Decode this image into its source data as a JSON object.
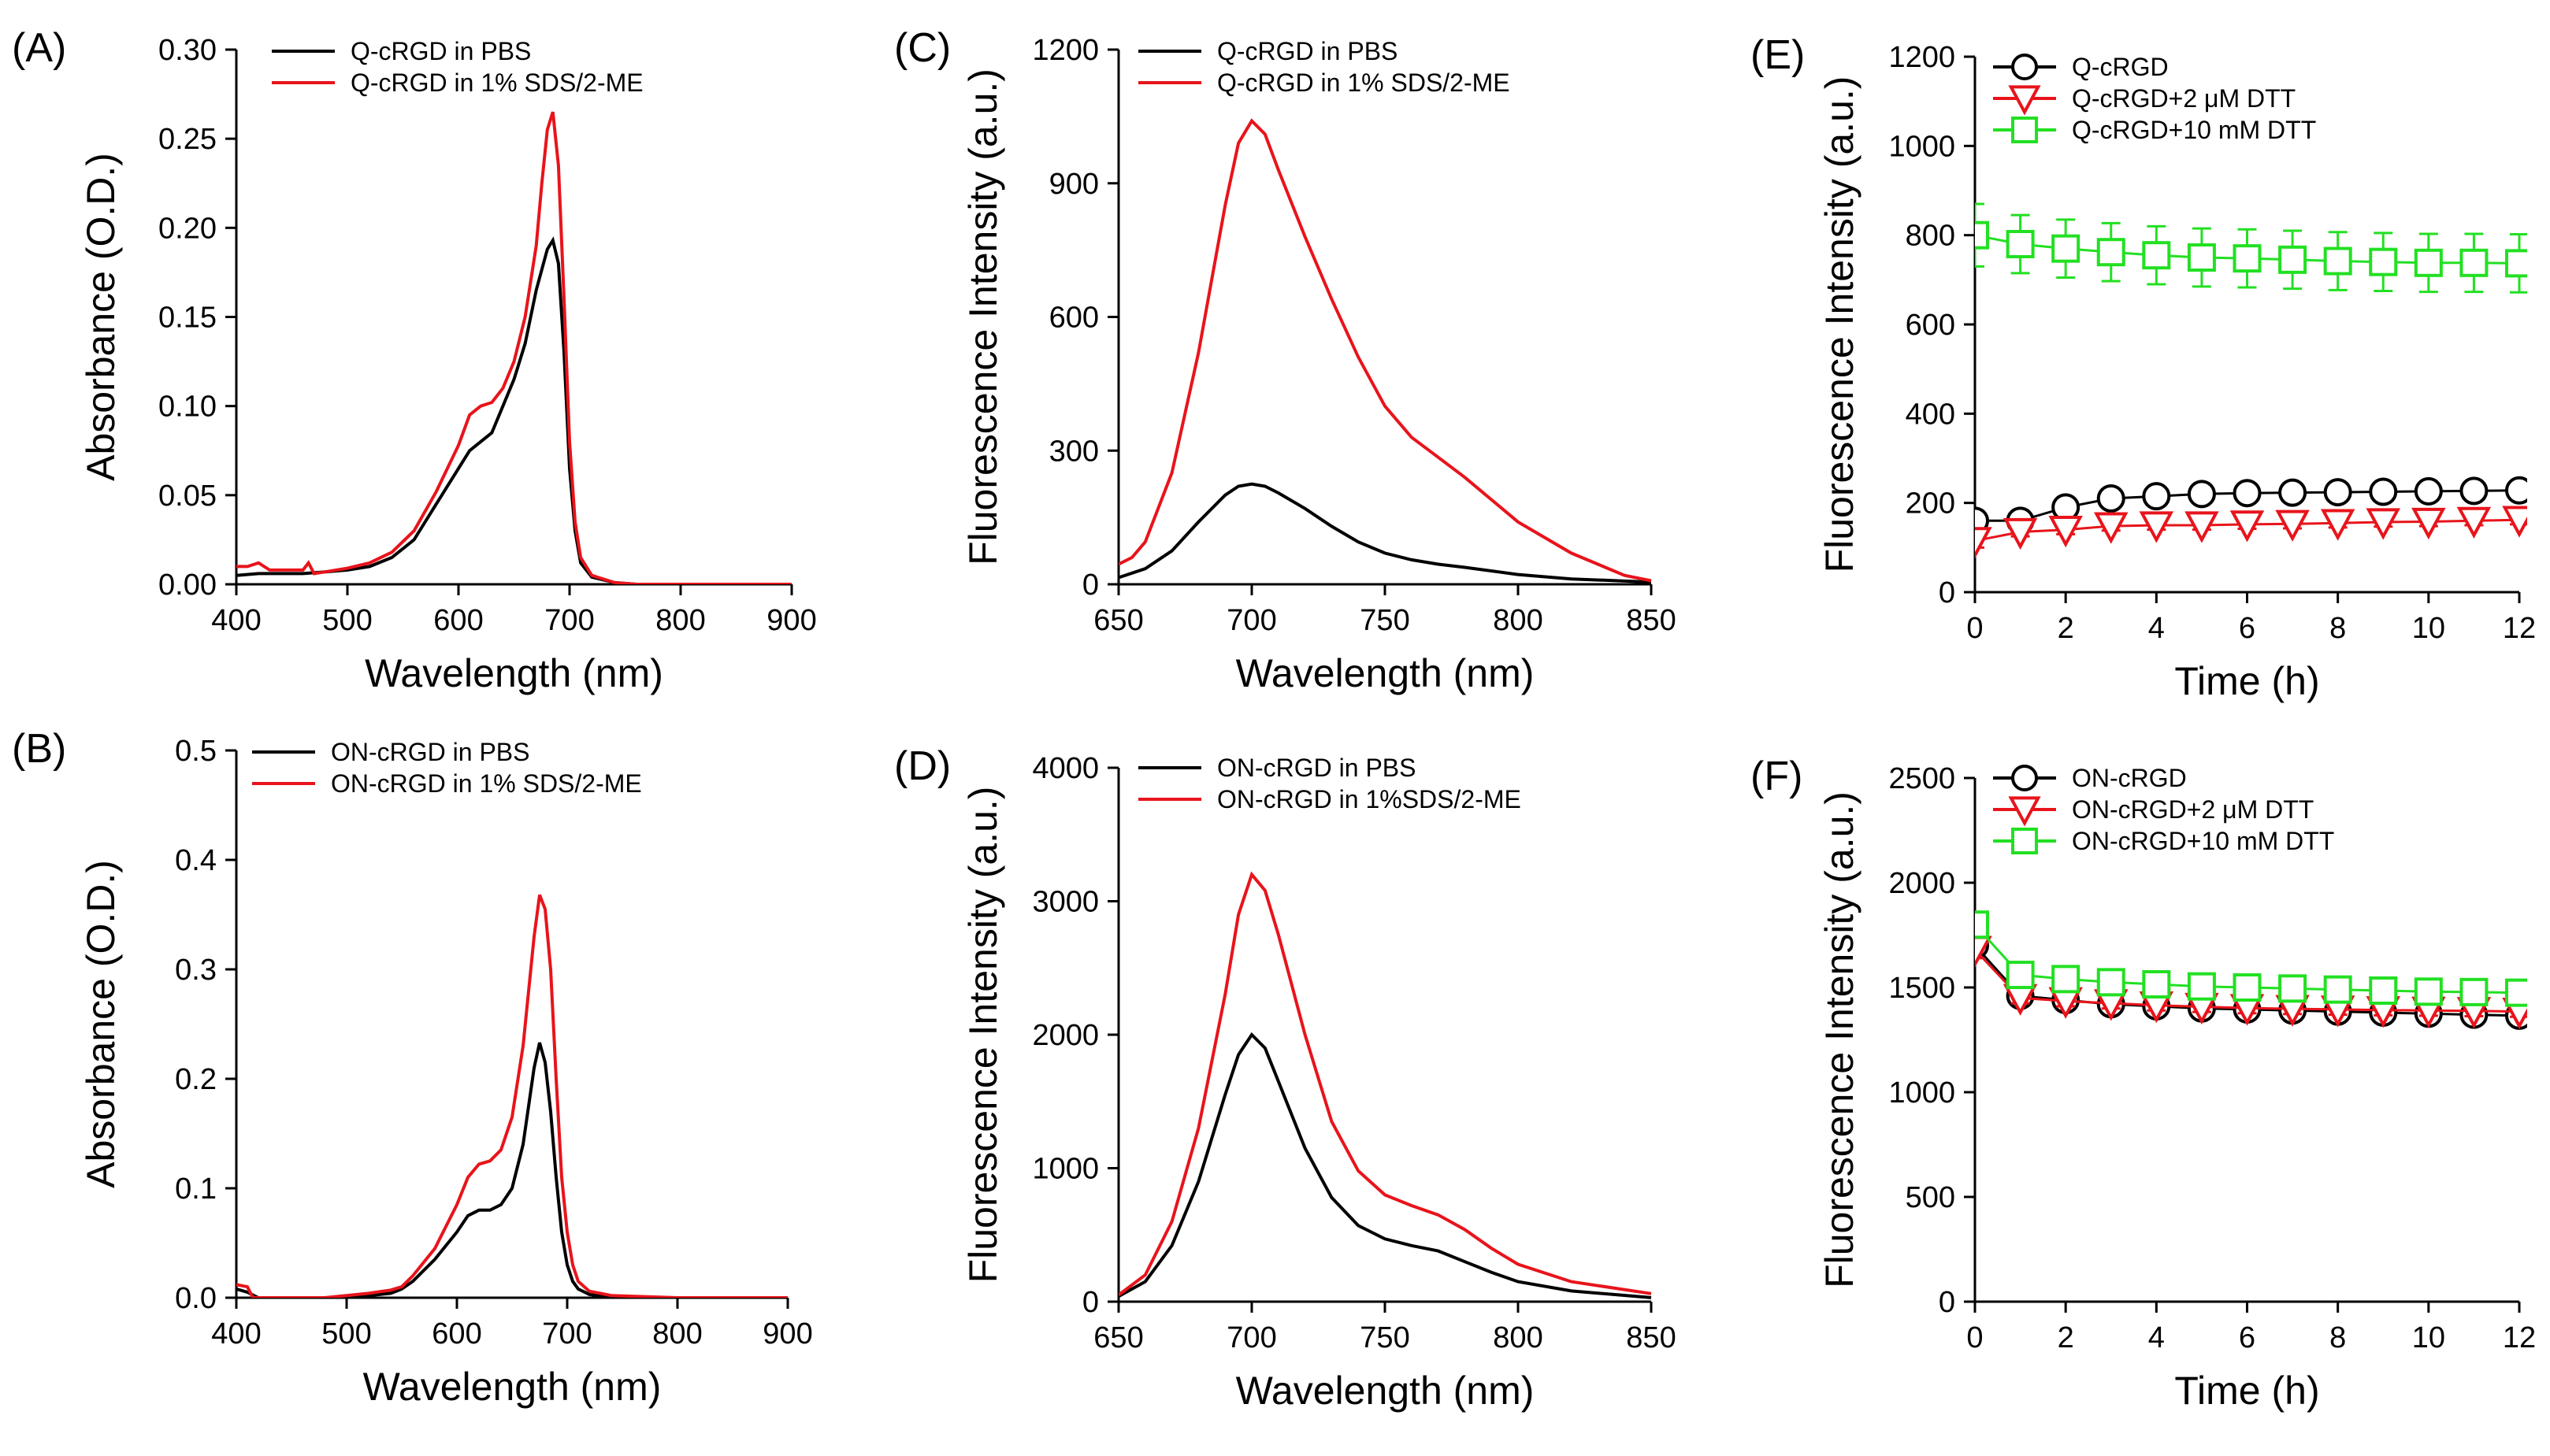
{
  "colors": {
    "black": "#000000",
    "red": "#e8141b",
    "green": "#22e022",
    "axis": "#000000"
  },
  "chart_data": [
    {
      "id": "A",
      "panel_label": "(A)",
      "type": "line",
      "xlabel": "Wavelength (nm)",
      "ylabel": "Absorbance (O.D.)",
      "xlim": [
        400,
        900
      ],
      "ylim": [
        0,
        0.3
      ],
      "xticks": [
        400,
        500,
        600,
        700,
        800,
        900
      ],
      "yticks": [
        0,
        0.05,
        0.1,
        0.15,
        0.2,
        0.25,
        0.3
      ],
      "ytick_labels": [
        "0.00",
        "0.05",
        "0.10",
        "0.15",
        "0.20",
        "0.25",
        "0.30"
      ],
      "legend": [
        "Q-cRGD in PBS",
        "Q-cRGD in 1% SDS/2-ME"
      ],
      "series": [
        {
          "name": "Q-cRGD in PBS",
          "color": "#000000",
          "x": [
            400,
            420,
            440,
            460,
            480,
            500,
            520,
            540,
            560,
            580,
            600,
            610,
            620,
            630,
            640,
            650,
            660,
            670,
            680,
            685,
            690,
            695,
            700,
            705,
            710,
            720,
            740,
            760,
            800,
            850,
            900
          ],
          "y": [
            0.005,
            0.006,
            0.006,
            0.006,
            0.007,
            0.008,
            0.01,
            0.015,
            0.025,
            0.045,
            0.065,
            0.075,
            0.08,
            0.085,
            0.1,
            0.115,
            0.135,
            0.165,
            0.188,
            0.193,
            0.18,
            0.13,
            0.065,
            0.03,
            0.012,
            0.004,
            0.001,
            0.0,
            0.0,
            0.0,
            0.0
          ]
        },
        {
          "name": "Q-cRGD in 1% SDS/2-ME",
          "color": "#e8141b",
          "x": [
            400,
            410,
            420,
            430,
            440,
            460,
            465,
            470,
            480,
            500,
            520,
            540,
            560,
            580,
            600,
            610,
            620,
            630,
            640,
            650,
            660,
            670,
            675,
            680,
            685,
            690,
            695,
            700,
            705,
            710,
            720,
            740,
            760,
            800,
            850,
            900
          ],
          "y": [
            0.01,
            0.01,
            0.012,
            0.008,
            0.008,
            0.008,
            0.012,
            0.006,
            0.007,
            0.009,
            0.012,
            0.018,
            0.03,
            0.052,
            0.078,
            0.095,
            0.1,
            0.102,
            0.11,
            0.125,
            0.15,
            0.19,
            0.225,
            0.255,
            0.265,
            0.235,
            0.16,
            0.08,
            0.035,
            0.015,
            0.005,
            0.001,
            0.0,
            0.0,
            0.0,
            0.0
          ]
        }
      ]
    },
    {
      "id": "B",
      "panel_label": "(B)",
      "type": "line",
      "xlabel": "Wavelength (nm)",
      "ylabel": "Absorbance (O.D.)",
      "xlim": [
        400,
        900
      ],
      "ylim": [
        0,
        0.5
      ],
      "xticks": [
        400,
        500,
        600,
        700,
        800,
        900
      ],
      "yticks": [
        0,
        0.1,
        0.2,
        0.3,
        0.4,
        0.5
      ],
      "ytick_labels": [
        "0.0",
        "0.1",
        "0.2",
        "0.3",
        "0.4",
        "0.5"
      ],
      "legend": [
        "ON-cRGD in PBS",
        "ON-cRGD in 1% SDS/2-ME"
      ],
      "series": [
        {
          "name": "ON-cRGD in PBS",
          "color": "#000000",
          "x": [
            400,
            410,
            420,
            440,
            460,
            480,
            500,
            520,
            540,
            550,
            560,
            580,
            600,
            610,
            620,
            630,
            640,
            650,
            660,
            670,
            675,
            680,
            685,
            690,
            695,
            700,
            705,
            710,
            720,
            740,
            800,
            900
          ],
          "y": [
            0.008,
            0.005,
            0.0,
            0.0,
            0.0,
            0.0,
            0.0,
            0.002,
            0.004,
            0.008,
            0.015,
            0.035,
            0.06,
            0.075,
            0.08,
            0.08,
            0.085,
            0.1,
            0.14,
            0.21,
            0.233,
            0.215,
            0.17,
            0.11,
            0.06,
            0.03,
            0.015,
            0.008,
            0.003,
            0.0,
            0.0,
            0.0
          ]
        },
        {
          "name": "ON-cRGD in 1% SDS/2-ME",
          "color": "#e8141b",
          "x": [
            400,
            410,
            415,
            420,
            440,
            460,
            480,
            500,
            520,
            540,
            550,
            560,
            580,
            600,
            610,
            620,
            630,
            640,
            650,
            660,
            670,
            675,
            680,
            685,
            690,
            695,
            700,
            705,
            710,
            720,
            740,
            800,
            900
          ],
          "y": [
            0.012,
            0.01,
            0.0,
            0.0,
            0.0,
            0.0,
            0.0,
            0.002,
            0.004,
            0.007,
            0.01,
            0.02,
            0.045,
            0.085,
            0.11,
            0.122,
            0.125,
            0.135,
            0.165,
            0.23,
            0.33,
            0.368,
            0.355,
            0.3,
            0.2,
            0.11,
            0.06,
            0.03,
            0.015,
            0.006,
            0.002,
            0.0,
            0.0
          ]
        }
      ]
    },
    {
      "id": "C",
      "panel_label": "(C)",
      "type": "line",
      "xlabel": "Wavelength (nm)",
      "ylabel": "Fluorescence Intensity (a.u.)",
      "xlim": [
        650,
        850
      ],
      "ylim": [
        0,
        1200
      ],
      "xticks": [
        650,
        700,
        750,
        800,
        850
      ],
      "yticks": [
        0,
        300,
        600,
        900,
        1200
      ],
      "ytick_labels": [
        "0",
        "300",
        "600",
        "900",
        "1200"
      ],
      "legend": [
        "Q-cRGD in PBS",
        "Q-cRGD in 1% SDS/2-ME"
      ],
      "series": [
        {
          "name": "Q-cRGD in PBS",
          "color": "#000000",
          "x": [
            650,
            660,
            670,
            680,
            690,
            695,
            700,
            705,
            710,
            720,
            730,
            740,
            750,
            760,
            770,
            780,
            800,
            820,
            850
          ],
          "y": [
            15,
            35,
            75,
            140,
            200,
            220,
            225,
            220,
            205,
            170,
            130,
            95,
            70,
            55,
            45,
            38,
            22,
            12,
            5
          ]
        },
        {
          "name": "Q-cRGD in 1% SDS/2-ME",
          "color": "#e8141b",
          "x": [
            650,
            655,
            660,
            670,
            680,
            690,
            695,
            700,
            705,
            710,
            720,
            730,
            740,
            750,
            760,
            770,
            780,
            790,
            800,
            820,
            840,
            850
          ],
          "y": [
            45,
            60,
            95,
            250,
            520,
            850,
            990,
            1040,
            1010,
            930,
            780,
            640,
            510,
            400,
            330,
            285,
            240,
            190,
            140,
            70,
            20,
            8
          ]
        }
      ]
    },
    {
      "id": "D",
      "panel_label": "(D)",
      "type": "line",
      "xlabel": "Wavelength (nm)",
      "ylabel": "Fluorescence Intensity (a.u.)",
      "xlim": [
        650,
        850
      ],
      "ylim": [
        0,
        4000
      ],
      "xticks": [
        650,
        700,
        750,
        800,
        850
      ],
      "yticks": [
        0,
        1000,
        2000,
        3000,
        4000
      ],
      "ytick_labels": [
        "0",
        "1000",
        "2000",
        "3000",
        "4000"
      ],
      "legend": [
        "ON-cRGD in PBS",
        "ON-cRGD in 1%SDS/2-ME"
      ],
      "series": [
        {
          "name": "ON-cRGD in PBS",
          "color": "#000000",
          "x": [
            650,
            660,
            670,
            680,
            690,
            695,
            700,
            705,
            710,
            720,
            730,
            740,
            750,
            760,
            770,
            780,
            790,
            800,
            820,
            850
          ],
          "y": [
            40,
            150,
            420,
            900,
            1550,
            1850,
            2000,
            1900,
            1650,
            1150,
            780,
            570,
            470,
            420,
            380,
            300,
            220,
            150,
            80,
            30
          ]
        },
        {
          "name": "ON-cRGD in 1%SDS/2-ME",
          "color": "#e8141b",
          "x": [
            650,
            660,
            670,
            680,
            690,
            695,
            700,
            705,
            710,
            720,
            730,
            740,
            750,
            760,
            770,
            780,
            790,
            800,
            820,
            850
          ],
          "y": [
            50,
            200,
            600,
            1300,
            2300,
            2900,
            3200,
            3080,
            2750,
            2000,
            1350,
            980,
            800,
            720,
            650,
            540,
            400,
            280,
            150,
            60
          ]
        }
      ]
    },
    {
      "id": "E",
      "panel_label": "(E)",
      "type": "scatter",
      "xlabel": "Time (h)",
      "ylabel": "Fluorescence Intensity (a.u.)",
      "xlim": [
        0,
        12
      ],
      "ylim": [
        0,
        1200
      ],
      "xticks": [
        0,
        2,
        4,
        6,
        8,
        10,
        12
      ],
      "yticks": [
        0,
        200,
        400,
        600,
        800,
        1000,
        1200
      ],
      "ytick_labels": [
        "0",
        "200",
        "400",
        "600",
        "800",
        "1000",
        "1200"
      ],
      "legend": [
        "Q-cRGD",
        "Q-cRGD+2 μM DTT",
        "Q-cRGD+10 mM  DTT"
      ],
      "series": [
        {
          "name": "Q-cRGD",
          "color": "#000000",
          "marker": "circle",
          "x": [
            0,
            1,
            2,
            3,
            4,
            5,
            6,
            7,
            8,
            9,
            10,
            11,
            12
          ],
          "y": [
            160,
            160,
            190,
            210,
            215,
            220,
            222,
            223,
            224,
            225,
            226,
            227,
            228
          ],
          "error": [
            10,
            8,
            8,
            8,
            8,
            8,
            8,
            8,
            8,
            8,
            8,
            8,
            8
          ]
        },
        {
          "name": "Q-cRGD+2 μM DTT",
          "color": "#e8141b",
          "marker": "triangle-down",
          "x": [
            0,
            1,
            2,
            3,
            4,
            5,
            6,
            7,
            8,
            9,
            10,
            11,
            12
          ],
          "y": [
            115,
            135,
            140,
            148,
            150,
            150,
            152,
            153,
            155,
            157,
            158,
            160,
            162
          ],
          "error": [
            15,
            10,
            10,
            10,
            10,
            10,
            10,
            10,
            10,
            10,
            10,
            10,
            10
          ]
        },
        {
          "name": "Q-cRGD+10 mM  DTT",
          "color": "#22e022",
          "marker": "square",
          "x": [
            0,
            1,
            2,
            3,
            4,
            5,
            6,
            7,
            8,
            9,
            10,
            11,
            12
          ],
          "y": [
            800,
            780,
            770,
            762,
            755,
            750,
            748,
            745,
            742,
            740,
            738,
            738,
            737
          ],
          "error": [
            70,
            65,
            65,
            65,
            65,
            65,
            65,
            65,
            65,
            65,
            65,
            65,
            65
          ]
        }
      ]
    },
    {
      "id": "F",
      "panel_label": "(F)",
      "type": "scatter",
      "xlabel": "Time (h)",
      "ylabel": "Fluorescence Intensity (a.u.)",
      "xlim": [
        0,
        12
      ],
      "ylim": [
        0,
        2500
      ],
      "xticks": [
        0,
        2,
        4,
        6,
        8,
        10,
        12
      ],
      "yticks": [
        0,
        500,
        1000,
        1500,
        2000,
        2500
      ],
      "ytick_labels": [
        "0",
        "500",
        "1000",
        "1500",
        "2000",
        "2500"
      ],
      "legend": [
        "ON-cRGD",
        "ON-cRGD+2 μM DTT",
        "ON-cRGD+10 mM DTT"
      ],
      "series": [
        {
          "name": "ON-cRGD",
          "color": "#000000",
          "marker": "circle",
          "x": [
            0,
            1,
            2,
            3,
            4,
            5,
            6,
            7,
            8,
            9,
            10,
            11,
            12
          ],
          "y": [
            1700,
            1460,
            1440,
            1420,
            1410,
            1400,
            1395,
            1390,
            1385,
            1380,
            1375,
            1370,
            1365
          ],
          "error": [
            40,
            25,
            25,
            25,
            25,
            25,
            25,
            25,
            25,
            25,
            25,
            25,
            25
          ]
        },
        {
          "name": "ON-cRGD+2 μM DTT",
          "color": "#e8141b",
          "marker": "triangle-down",
          "x": [
            0,
            1,
            2,
            3,
            4,
            5,
            6,
            7,
            8,
            9,
            10,
            11,
            12
          ],
          "y": [
            1680,
            1450,
            1435,
            1425,
            1415,
            1408,
            1402,
            1398,
            1395,
            1392,
            1390,
            1388,
            1385
          ],
          "error": [
            40,
            25,
            25,
            25,
            25,
            25,
            25,
            25,
            25,
            25,
            25,
            25,
            25
          ]
        },
        {
          "name": "ON-cRGD+10 mM DTT",
          "color": "#22e022",
          "marker": "square",
          "x": [
            0,
            1,
            2,
            3,
            4,
            5,
            6,
            7,
            8,
            9,
            10,
            11,
            12
          ],
          "y": [
            1800,
            1560,
            1540,
            1525,
            1515,
            1505,
            1500,
            1495,
            1490,
            1485,
            1480,
            1478,
            1475
          ],
          "error": [
            40,
            25,
            25,
            25,
            25,
            25,
            25,
            25,
            25,
            25,
            25,
            25,
            25
          ]
        }
      ]
    }
  ]
}
